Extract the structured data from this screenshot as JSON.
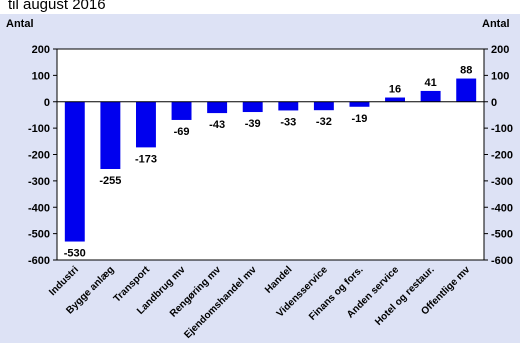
{
  "header": {
    "subtitle_fragment": "til august 2016"
  },
  "chart_data": {
    "type": "bar",
    "title": "",
    "ylabel_left": "Antal",
    "ylabel_right": "Antal",
    "xlabel": "",
    "ylim": [
      -600,
      200
    ],
    "yticks": [
      200,
      100,
      0,
      -100,
      -200,
      -300,
      -400,
      -500,
      -600
    ],
    "grid": false,
    "legend": "none",
    "categories": [
      "Industri",
      "Bygge anlæg",
      "Transport",
      "Landbrug mv",
      "Rengøring mv",
      "Ejendomshandel mv",
      "Handel",
      "Vidensservice",
      "Finans og fors.",
      "Anden service",
      "Hotel og restaur.",
      "Offentlige mv"
    ],
    "values": [
      -530,
      -255,
      -173,
      -69,
      -43,
      -39,
      -33,
      -32,
      -19,
      16,
      41,
      88
    ],
    "bar_color": "#0000ee",
    "plot_bg": "#ffffff",
    "page_bg": "#dde2f5"
  }
}
